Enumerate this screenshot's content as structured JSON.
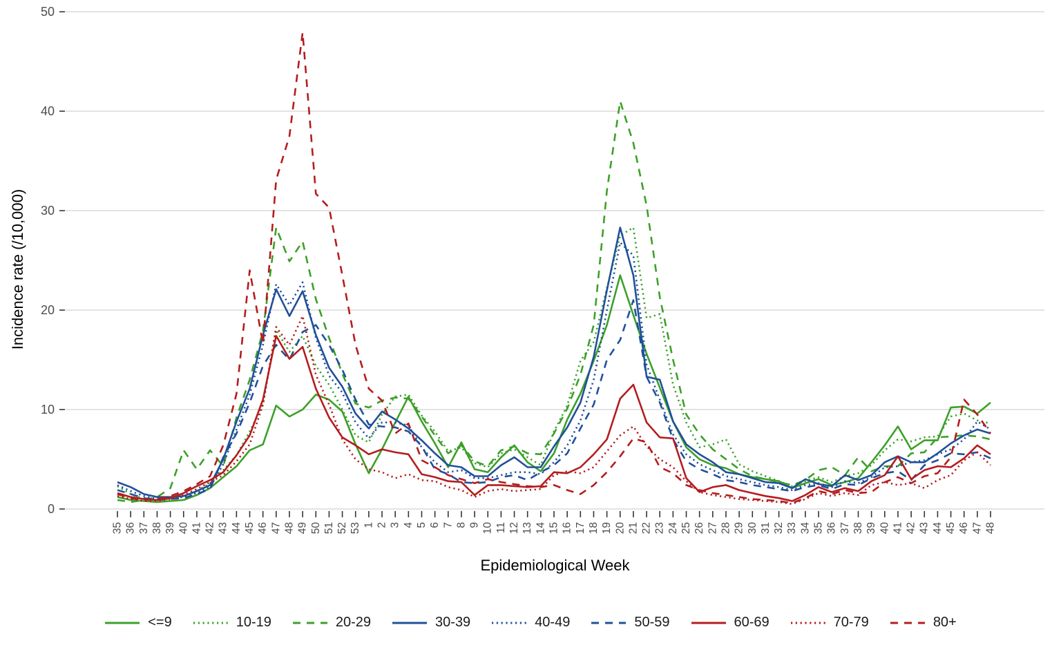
{
  "chart_data": {
    "type": "line",
    "title": "",
    "xlabel": "Epidemiological Week",
    "ylabel": "Incidence rate (/10,000)",
    "ylim": [
      0,
      50
    ],
    "yticks": [
      0,
      10,
      20,
      30,
      40,
      50
    ],
    "grid": "horizontal",
    "legend_position": "bottom",
    "x_labels": [
      "35",
      "36",
      "37",
      "38",
      "39",
      "40",
      "41",
      "42",
      "43",
      "44",
      "45",
      "46",
      "47",
      "48",
      "49",
      "50",
      "51",
      "52",
      "53",
      "1",
      "2",
      "3",
      "4",
      "5",
      "6",
      "7",
      "8",
      "9",
      "10",
      "11",
      "12",
      "13",
      "14",
      "15",
      "16",
      "17",
      "18",
      "19",
      "20",
      "21",
      "22",
      "23",
      "24",
      "25",
      "26",
      "27",
      "28",
      "29",
      "30",
      "31",
      "32",
      "33",
      "34",
      "35",
      "36",
      "37",
      "38",
      "39",
      "40",
      "41",
      "42",
      "43",
      "44",
      "45",
      "46",
      "47",
      "48"
    ],
    "colors": {
      "green": "#3CA028",
      "blue": "#20509A",
      "red": "#B41C1E"
    },
    "series": [
      {
        "name": "<=9",
        "color": "#3CA028",
        "dash": "solid",
        "values": [
          1.2,
          0.9,
          0.8,
          0.7,
          0.8,
          0.9,
          1.4,
          2.1,
          3.2,
          4.3,
          5.9,
          6.5,
          10.4,
          9.3,
          10.0,
          11.5,
          11.0,
          9.8,
          6.5,
          3.6,
          6.0,
          8.7,
          11.3,
          8.8,
          6.6,
          4.2,
          6.7,
          4.0,
          3.7,
          5.2,
          6.4,
          4.7,
          3.8,
          5.6,
          9.0,
          11.6,
          14.9,
          18.5,
          23.5,
          19.5,
          15.6,
          12.2,
          8.8,
          6.2,
          5.0,
          4.4,
          4.1,
          3.5,
          3.2,
          3.0,
          2.8,
          2.1,
          2.6,
          3.0,
          2.4,
          2.7,
          3.1,
          4.7,
          6.4,
          8.3,
          6.0,
          6.9,
          6.9,
          10.2,
          10.3,
          9.6,
          10.7
        ]
      },
      {
        "name": "10-19",
        "color": "#3CA028",
        "dash": "dotted",
        "values": [
          2.3,
          1.5,
          1.0,
          0.9,
          1.0,
          1.3,
          1.8,
          2.6,
          3.9,
          5.4,
          7.8,
          10.5,
          18.0,
          15.8,
          17.4,
          14.4,
          12.5,
          10.0,
          7.4,
          6.7,
          9.5,
          11.3,
          11.5,
          9.4,
          7.8,
          5.8,
          6.2,
          4.6,
          4.2,
          5.6,
          6.0,
          5.2,
          4.4,
          7.8,
          10.4,
          14.9,
          16.8,
          22.2,
          27.5,
          28.3,
          19.2,
          19.6,
          12.5,
          8.7,
          6.2,
          6.5,
          7.0,
          4.5,
          3.8,
          3.3,
          2.8,
          2.3,
          2.8,
          3.2,
          2.7,
          3.3,
          3.6,
          4.4,
          5.9,
          7.0,
          6.8,
          7.2,
          7.3,
          9.3,
          9.6,
          8.9,
          8.6
        ]
      },
      {
        "name": "20-29",
        "color": "#3CA028",
        "dash": "dashed",
        "values": [
          0.9,
          0.7,
          0.9,
          1.2,
          2.1,
          5.9,
          4.0,
          5.9,
          4.3,
          9.2,
          13.0,
          17.9,
          28.3,
          24.9,
          26.9,
          21.1,
          17.2,
          13.6,
          10.6,
          10.2,
          10.9,
          11.2,
          11.1,
          9.3,
          7.4,
          5.6,
          6.4,
          4.8,
          4.3,
          5.9,
          6.3,
          5.6,
          5.5,
          7.6,
          10.1,
          13.5,
          18.5,
          32.0,
          41.0,
          36.8,
          30.5,
          21.3,
          15.0,
          9.5,
          7.5,
          6.0,
          5.0,
          4.0,
          3.3,
          3.0,
          2.7,
          2.4,
          2.9,
          3.9,
          4.2,
          3.4,
          5.2,
          3.8,
          4.3,
          4.3,
          5.6,
          5.7,
          7.2,
          7.3,
          7.4,
          7.3,
          7.0
        ]
      },
      {
        "name": "30-39",
        "color": "#20509A",
        "dash": "solid",
        "values": [
          2.7,
          2.2,
          1.5,
          1.2,
          1.2,
          1.3,
          1.8,
          2.4,
          5.0,
          8.8,
          12.1,
          17.5,
          22.1,
          19.4,
          21.9,
          17.5,
          14.2,
          12.3,
          9.6,
          8.1,
          9.8,
          9.0,
          8.1,
          6.9,
          5.6,
          4.4,
          4.2,
          3.3,
          3.3,
          4.4,
          5.2,
          4.2,
          4.2,
          6.3,
          8.2,
          10.7,
          15.3,
          22.0,
          28.3,
          23.5,
          13.3,
          13.0,
          8.8,
          6.5,
          5.5,
          4.7,
          3.7,
          3.5,
          3.1,
          2.7,
          2.6,
          2.1,
          3.0,
          2.5,
          2.3,
          3.4,
          2.9,
          3.4,
          4.7,
          5.3,
          4.7,
          4.7,
          5.6,
          6.6,
          7.4,
          8.0,
          7.6
        ]
      },
      {
        "name": "40-49",
        "color": "#20509A",
        "dash": "dotted",
        "values": [
          2.4,
          1.8,
          1.3,
          1.0,
          1.1,
          1.2,
          1.6,
          2.2,
          4.5,
          8.0,
          11.5,
          16.5,
          22.6,
          20.5,
          22.8,
          17.2,
          13.4,
          11.7,
          8.7,
          7.1,
          8.7,
          8.7,
          8.4,
          6.2,
          4.7,
          3.7,
          3.9,
          3.1,
          3.1,
          3.4,
          3.7,
          3.7,
          3.5,
          4.7,
          6.4,
          8.9,
          13.0,
          20.0,
          26.8,
          25.5,
          14.5,
          11.0,
          7.5,
          5.5,
          4.5,
          3.9,
          3.3,
          3.0,
          2.7,
          2.4,
          2.2,
          1.9,
          2.4,
          2.6,
          2.2,
          2.8,
          2.6,
          3.2,
          4.2,
          4.3,
          4.7,
          4.9,
          5.5,
          6.0,
          7.0,
          8.8,
          8.0
        ]
      },
      {
        "name": "50-59",
        "color": "#20509A",
        "dash": "dashed",
        "values": [
          1.9,
          1.5,
          1.1,
          0.9,
          1.0,
          1.1,
          1.5,
          2.0,
          5.2,
          7.6,
          10.7,
          14.4,
          16.5,
          15.0,
          17.8,
          18.5,
          16.5,
          14.0,
          11.0,
          8.5,
          8.3,
          8.2,
          7.8,
          6.3,
          4.0,
          3.5,
          2.7,
          2.6,
          2.7,
          3.2,
          3.4,
          2.9,
          3.7,
          4.4,
          5.6,
          8.1,
          10.5,
          15.0,
          17.0,
          21.0,
          13.3,
          10.7,
          7.0,
          4.8,
          4.0,
          3.5,
          2.9,
          2.7,
          2.4,
          2.2,
          2.0,
          1.8,
          2.2,
          2.4,
          2.0,
          2.5,
          2.4,
          3.1,
          3.6,
          3.8,
          2.9,
          4.4,
          4.9,
          5.6,
          5.5,
          5.7,
          5.1
        ]
      },
      {
        "name": "60-69",
        "color": "#B41C1E",
        "dash": "solid",
        "values": [
          1.6,
          1.2,
          1.0,
          0.9,
          1.1,
          1.6,
          2.3,
          2.9,
          3.7,
          5.4,
          7.4,
          11.0,
          17.4,
          15.1,
          16.3,
          12.1,
          9.2,
          7.2,
          6.4,
          5.5,
          6.0,
          5.7,
          5.5,
          3.5,
          3.2,
          2.8,
          2.7,
          1.4,
          2.4,
          2.4,
          2.3,
          2.2,
          2.3,
          3.7,
          3.6,
          4.2,
          5.5,
          7.0,
          11.1,
          12.5,
          8.7,
          7.2,
          7.1,
          3.1,
          1.7,
          2.2,
          2.4,
          1.9,
          1.6,
          1.3,
          1.1,
          0.8,
          1.4,
          2.2,
          1.7,
          2.1,
          1.8,
          2.8,
          3.4,
          5.3,
          3.0,
          3.9,
          4.3,
          4.2,
          5.1,
          6.4,
          5.5
        ]
      },
      {
        "name": "70-79",
        "color": "#B41C1E",
        "dash": "dotted",
        "values": [
          1.3,
          1.0,
          0.8,
          0.8,
          1.0,
          1.4,
          2.0,
          2.7,
          3.4,
          4.8,
          6.5,
          10.5,
          18.3,
          16.5,
          19.4,
          13.5,
          10.5,
          7.0,
          5.0,
          4.0,
          3.7,
          3.1,
          3.5,
          2.9,
          2.8,
          2.2,
          1.9,
          1.2,
          1.8,
          2.0,
          1.8,
          1.9,
          2.0,
          3.4,
          3.8,
          3.6,
          4.2,
          5.8,
          7.4,
          8.3,
          6.3,
          5.0,
          4.2,
          2.8,
          1.7,
          1.4,
          1.2,
          1.0,
          0.9,
          0.8,
          0.7,
          0.5,
          1.0,
          1.6,
          1.3,
          1.6,
          1.4,
          2.4,
          2.7,
          2.4,
          2.6,
          2.1,
          2.9,
          3.4,
          4.9,
          5.7,
          4.4
        ]
      },
      {
        "name": "80+",
        "color": "#B41C1E",
        "dash": "dashed",
        "values": [
          1.5,
          1.1,
          0.9,
          1.0,
          1.3,
          1.8,
          2.5,
          3.3,
          6.4,
          11.6,
          24.0,
          16.6,
          33.1,
          37.5,
          47.9,
          31.7,
          30.3,
          23.5,
          16.5,
          12.1,
          10.9,
          7.6,
          8.6,
          4.9,
          4.2,
          3.4,
          3.0,
          2.6,
          3.0,
          2.7,
          2.5,
          2.3,
          2.2,
          2.4,
          1.9,
          1.5,
          2.4,
          3.7,
          5.3,
          7.1,
          6.7,
          4.2,
          3.6,
          2.4,
          1.9,
          1.6,
          1.4,
          1.2,
          1.0,
          0.9,
          0.8,
          0.6,
          1.1,
          1.8,
          1.5,
          1.9,
          1.6,
          1.7,
          2.7,
          3.2,
          2.6,
          3.3,
          3.6,
          5.2,
          11.0,
          9.5,
          7.6
        ]
      }
    ],
    "style": {
      "gridline_color": "#E3E3E3",
      "tick_color": "#333333",
      "tick_label_color": "#4d4d4d",
      "axis_title_color": "#000000"
    }
  }
}
